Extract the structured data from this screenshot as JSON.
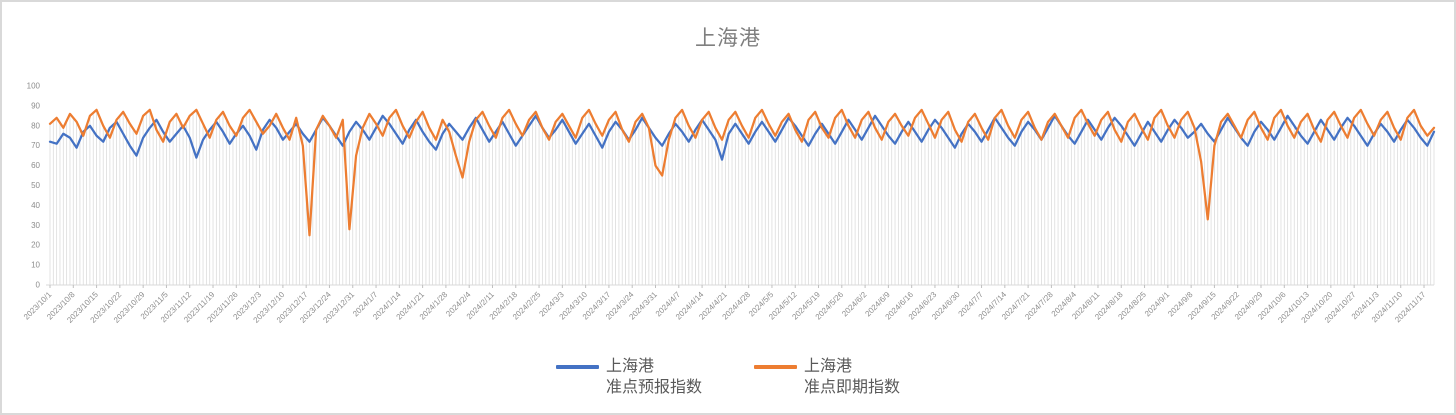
{
  "chart": {
    "title": "上海港",
    "legend": {
      "position": "bottom",
      "entries": [
        {
          "label_line1": "上海港",
          "label_line2": "准点预报指数",
          "color": "#4472C4"
        },
        {
          "label_line1": "上海港",
          "label_line2": "准点即期指数",
          "color": "#ED7D31"
        }
      ]
    },
    "colors": {
      "forecast_series": "#4472C4",
      "spot_series": "#ED7D31",
      "title_text": "#7f7f7f",
      "axis_text": "#8c8c8c",
      "legend_text": "#595959",
      "drop_line": "#dcdcdc",
      "axis_line": "#d9d9d9",
      "frame_border": "#d9d9d9"
    }
  },
  "chart_data": {
    "type": "line",
    "title": "上海港",
    "xlabel": "",
    "ylabel": "",
    "ylim": [
      0,
      100
    ],
    "y_ticks": [
      0,
      10,
      20,
      30,
      40,
      50,
      60,
      70,
      80,
      90,
      100
    ],
    "grid": "vertical drop lines from each daily point to x-axis",
    "legend_position": "bottom",
    "x_start": "2023/10/1",
    "x_label_interval_days": 7,
    "x_labels": [
      "2023/10/1",
      "2023/10/8",
      "2023/10/15",
      "2023/10/22",
      "2023/10/29",
      "2023/11/5",
      "2023/11/12",
      "2023/11/19",
      "2023/11/26",
      "2023/12/3",
      "2023/12/10",
      "2023/12/17",
      "2023/12/24",
      "2023/12/31",
      "2024/1/7",
      "2024/1/14",
      "2024/1/21",
      "2024/1/28",
      "2024/2/4",
      "2024/2/11",
      "2024/2/18",
      "2024/2/25",
      "2024/3/3",
      "2024/3/10",
      "2024/3/17",
      "2024/3/24",
      "2024/3/31",
      "2024/4/7",
      "2024/4/14",
      "2024/4/21",
      "2024/4/28",
      "2024/5/5",
      "2024/5/12",
      "2024/5/19",
      "2024/5/26",
      "2024/6/2",
      "2024/6/9",
      "2024/6/16",
      "2024/6/23",
      "2024/6/30",
      "2024/7/7",
      "2024/7/14",
      "2024/7/21",
      "2024/7/28",
      "2024/8/4",
      "2024/8/11",
      "2024/8/18",
      "2024/8/25",
      "2024/9/1",
      "2024/9/8",
      "2024/9/15",
      "2024/9/22",
      "2024/9/29",
      "2024/10/6",
      "2024/10/13",
      "2024/10/20",
      "2024/10/27",
      "2024/11/3",
      "2024/11/10",
      "2024/11/17"
    ],
    "sample_step_days": 2,
    "values_note": "daily noisy series estimated from pixels, sampled every 2 days; notable dips: spot index ~25 on 2023/12/18, ~28 on 2023/12/30, ~54 on 2024/2/2, ~55 on 2024/3/31, ~33 on 2024/9/14",
    "series": [
      {
        "name": "上海港 准点预报指数",
        "color": "#4472C4",
        "values": [
          72,
          71,
          76,
          74,
          69,
          77,
          80,
          75,
          72,
          79,
          82,
          76,
          70,
          65,
          74,
          79,
          83,
          77,
          72,
          76,
          80,
          74,
          64,
          73,
          78,
          82,
          77,
          71,
          76,
          80,
          75,
          68,
          78,
          83,
          79,
          73,
          77,
          81,
          76,
          72,
          78,
          84,
          80,
          75,
          70,
          77,
          82,
          78,
          73,
          79,
          85,
          81,
          76,
          71,
          78,
          83,
          77,
          72,
          68,
          76,
          81,
          77,
          73,
          79,
          84,
          78,
          72,
          77,
          82,
          76,
          70,
          75,
          80,
          85,
          79,
          74,
          78,
          83,
          77,
          71,
          76,
          81,
          75,
          69,
          77,
          82,
          78,
          73,
          78,
          84,
          79,
          74,
          70,
          76,
          81,
          77,
          72,
          78,
          83,
          78,
          73,
          63,
          76,
          81,
          76,
          71,
          77,
          82,
          77,
          72,
          78,
          84,
          80,
          75,
          70,
          76,
          81,
          76,
          71,
          77,
          83,
          78,
          73,
          79,
          85,
          80,
          75,
          71,
          77,
          82,
          77,
          72,
          78,
          83,
          79,
          74,
          69,
          76,
          81,
          77,
          72,
          78,
          84,
          79,
          74,
          70,
          77,
          82,
          78,
          73,
          79,
          85,
          80,
          75,
          71,
          77,
          83,
          78,
          73,
          79,
          84,
          80,
          75,
          70,
          76,
          82,
          77,
          72,
          78,
          83,
          79,
          74,
          77,
          81,
          76,
          72,
          78,
          84,
          79,
          74,
          70,
          77,
          82,
          78,
          73,
          79,
          85,
          80,
          75,
          71,
          77,
          83,
          78,
          73,
          79,
          84,
          80,
          75,
          70,
          76,
          81,
          77,
          72,
          78,
          83,
          79,
          74,
          70,
          77
        ]
      },
      {
        "name": "上海港 准点即期指数",
        "color": "#ED7D31",
        "values": [
          81,
          84,
          79,
          86,
          82,
          75,
          85,
          88,
          80,
          74,
          83,
          87,
          81,
          76,
          85,
          88,
          78,
          72,
          82,
          86,
          79,
          85,
          88,
          81,
          74,
          83,
          87,
          80,
          75,
          84,
          88,
          82,
          76,
          80,
          86,
          79,
          73,
          84,
          70,
          25,
          78,
          85,
          80,
          74,
          83,
          28,
          65,
          79,
          86,
          81,
          75,
          84,
          88,
          80,
          74,
          82,
          87,
          79,
          73,
          83,
          77,
          65,
          54,
          72,
          83,
          87,
          80,
          74,
          84,
          88,
          81,
          75,
          83,
          87,
          79,
          73,
          82,
          86,
          80,
          74,
          84,
          88,
          81,
          75,
          83,
          87,
          78,
          72,
          82,
          86,
          79,
          60,
          55,
          73,
          84,
          88,
          80,
          74,
          83,
          87,
          79,
          73,
          83,
          87,
          80,
          74,
          84,
          88,
          81,
          75,
          82,
          86,
          78,
          72,
          83,
          87,
          79,
          74,
          84,
          88,
          80,
          74,
          83,
          87,
          79,
          73,
          82,
          86,
          80,
          75,
          84,
          88,
          81,
          74,
          83,
          87,
          78,
          72,
          82,
          86,
          79,
          73,
          84,
          88,
          80,
          74,
          83,
          87,
          79,
          73,
          82,
          86,
          80,
          74,
          84,
          88,
          81,
          75,
          83,
          87,
          78,
          72,
          82,
          86,
          79,
          73,
          84,
          88,
          80,
          74,
          83,
          87,
          79,
          62,
          33,
          70,
          82,
          86,
          80,
          74,
          83,
          87,
          79,
          73,
          84,
          88,
          80,
          74,
          82,
          86,
          78,
          72,
          83,
          87,
          80,
          74,
          84,
          88,
          81,
          75,
          83,
          87,
          79,
          73,
          84,
          88,
          80,
          75,
          79
        ]
      }
    ]
  }
}
